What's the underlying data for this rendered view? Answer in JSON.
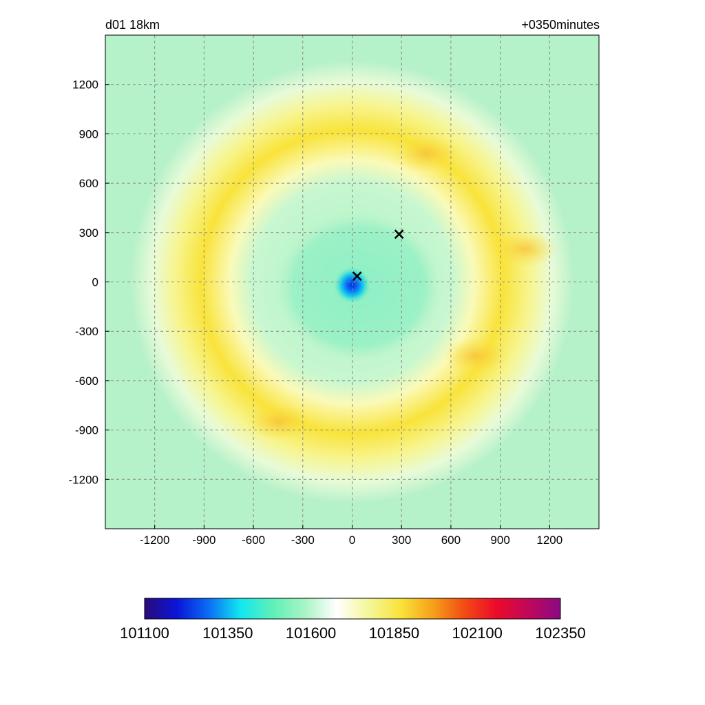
{
  "header": {
    "left_title": "d01 18km",
    "right_title": "+0350minutes"
  },
  "chart_data": {
    "type": "heatmap",
    "title": "d01 18km",
    "subtitle": "+0350minutes",
    "xlabel": "",
    "ylabel": "",
    "xlim": [
      -1500,
      1500
    ],
    "ylim": [
      -1500,
      1500
    ],
    "x_ticks": [
      -1200,
      -900,
      -600,
      -300,
      0,
      300,
      600,
      900,
      1200
    ],
    "y_ticks": [
      1200,
      900,
      600,
      300,
      0,
      -300,
      -600,
      -900,
      -1200
    ],
    "grid": true,
    "grid_style": "dashed",
    "markers": [
      {
        "symbol": "x",
        "x": 30,
        "y": 35
      },
      {
        "symbol": "x",
        "x": 285,
        "y": 290
      }
    ],
    "field_description_features": [
      {
        "kind": "low",
        "x": 0,
        "y": -20,
        "value": 101300
      },
      {
        "kind": "ring-high",
        "radius": 1000,
        "value": 101900
      },
      {
        "kind": "local-high",
        "x": 450,
        "y": 780,
        "value": 101980
      },
      {
        "kind": "local-high",
        "x": -450,
        "y": -850,
        "value": 101990
      },
      {
        "kind": "local-high",
        "x": 750,
        "y": -450,
        "value": 101990
      },
      {
        "kind": "local-high",
        "x": 1050,
        "y": 200,
        "value": 101960
      }
    ],
    "colorbar": {
      "min": 101100,
      "max": 102350,
      "tick_labels": [
        "101100",
        "101350",
        "101600",
        "101850",
        "102100",
        "102350"
      ],
      "colors": [
        "#2c0a7a",
        "#0a14d8",
        "#0b6cf5",
        "#12e8f0",
        "#5ef0b8",
        "#a8f4c4",
        "#ffffff",
        "#f4f79a",
        "#f9e33a",
        "#f7a11a",
        "#f24b14",
        "#ec0a2a",
        "#c0085a",
        "#8a0a84"
      ]
    }
  }
}
